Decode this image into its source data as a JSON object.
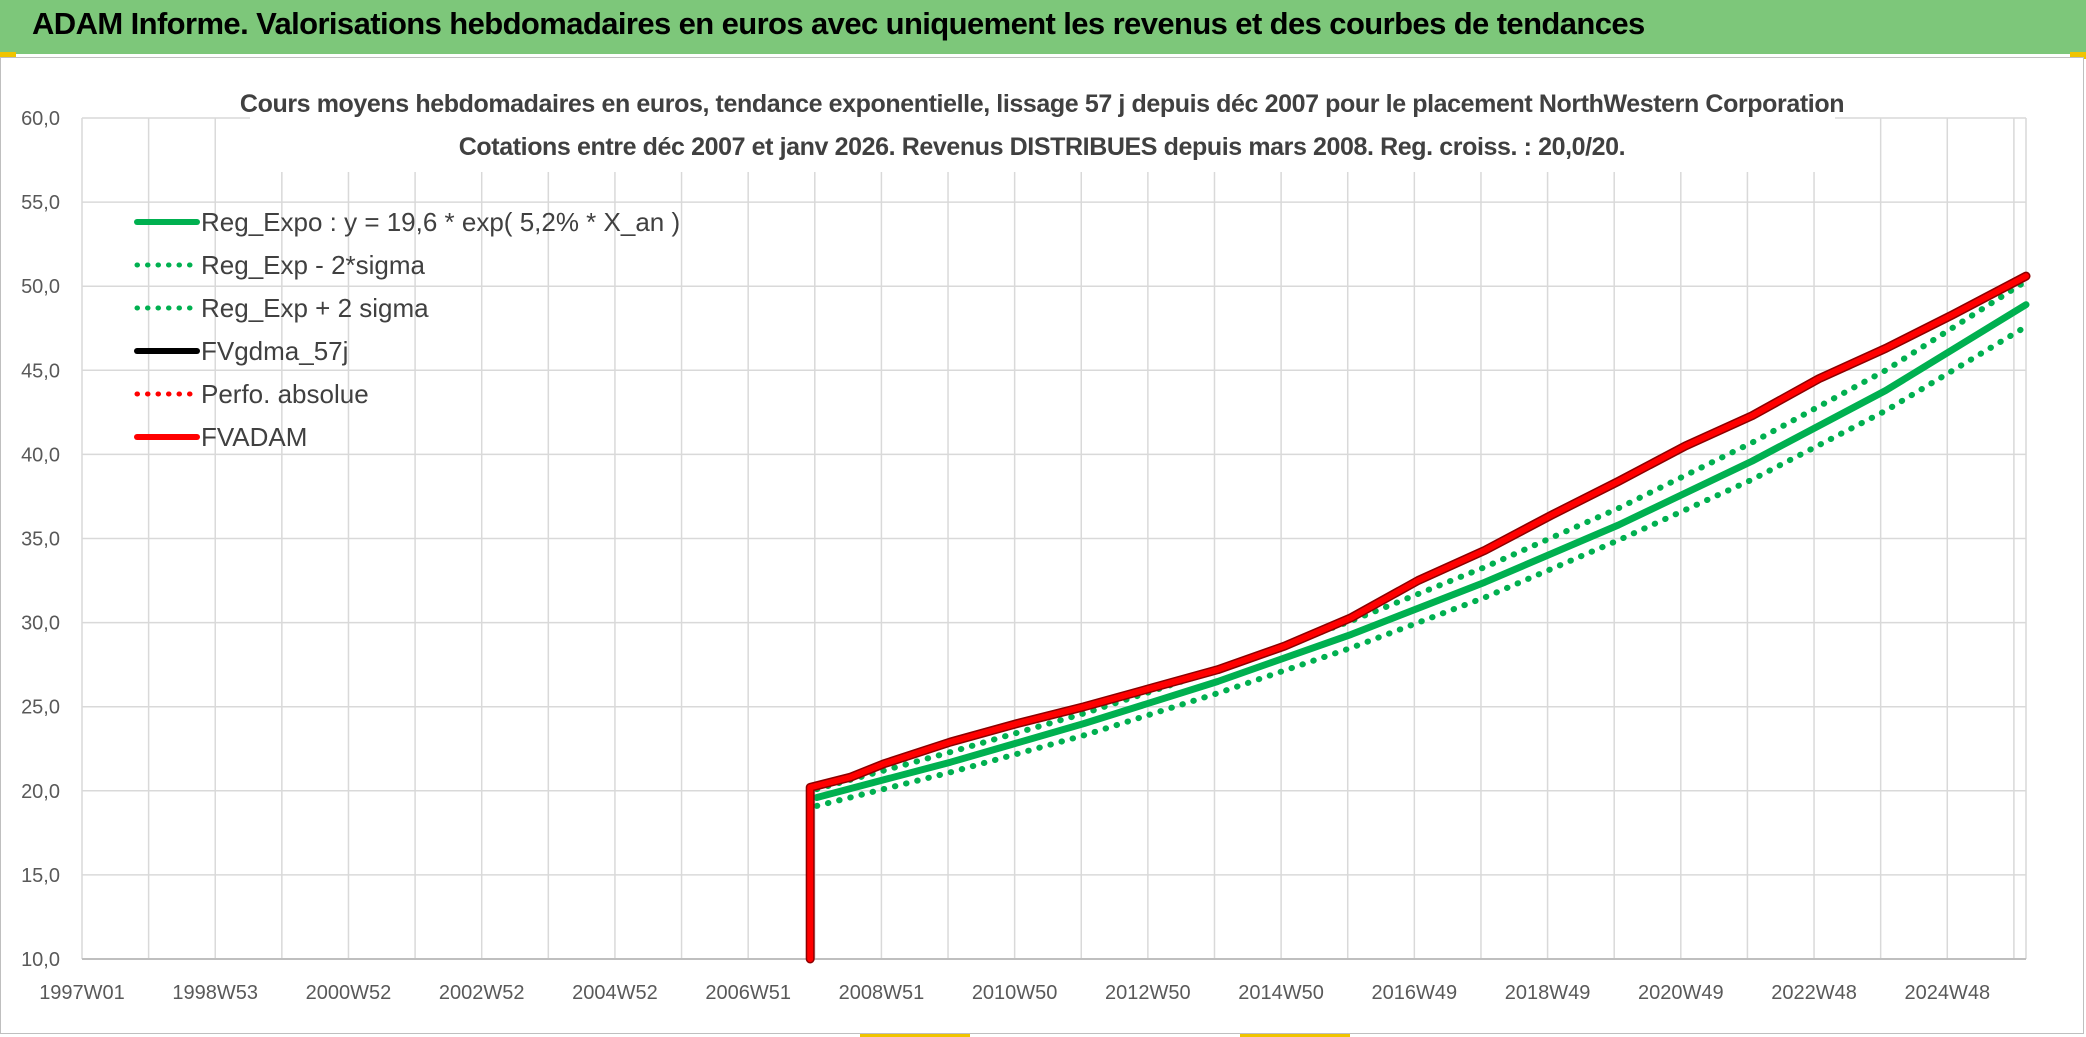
{
  "header": {
    "title": "ADAM Informe. Valorisations hebdomadaires en euros avec uniquement les revenus et des courbes de tendances"
  },
  "colors": {
    "banner": "#7dc77a",
    "green": "#00b050",
    "red": "#ff0000",
    "black": "#000000",
    "grid": "#d9d9d9"
  },
  "chart_data": {
    "type": "line",
    "title_line1": "Cours moyens hebdomadaires en euros, tendance exponentielle, lissage 57 j depuis déc 2007 pour le placement NorthWestern Corporation",
    "title_line2": "Cotations entre déc 2007 et janv 2026. Revenus DISTRIBUES depuis mars 2008. Reg. croiss. : 20,0/20.",
    "x_tick_labels": [
      "1997W01",
      "1998W53",
      "2000W52",
      "2002W52",
      "2004W52",
      "2006W51",
      "2008W51",
      "2010W50",
      "2012W50",
      "2014W50",
      "2016W49",
      "2018W49",
      "2020W49",
      "2022W48",
      "2024W48"
    ],
    "y_tick_labels": [
      "10,0",
      "15,0",
      "20,0",
      "25,0",
      "30,0",
      "35,0",
      "40,0",
      "45,0",
      "50,0",
      "55,0",
      "60,0"
    ],
    "x_range": [
      1997.0,
      2026.1
    ],
    "ylim": [
      10,
      60
    ],
    "grid": true,
    "legend_position": "top-left",
    "legend": [
      {
        "name": "Reg_Expo : y = 19,6 * exp( 5,2% *  X_an )",
        "color": "#00b050",
        "style": "solid"
      },
      {
        "name": "Reg_Exp - 2*sigma",
        "color": "#00b050",
        "style": "dotted"
      },
      {
        "name": "Reg_Exp + 2 sigma",
        "color": "#00b050",
        "style": "dotted"
      },
      {
        "name": "FVgdma_57j",
        "color": "#000000",
        "style": "solid"
      },
      {
        "name": "Perfo. absolue",
        "color": "#ff0000",
        "style": "dotted"
      },
      {
        "name": "FVADAM",
        "color": "#ff0000",
        "style": "solid"
      }
    ],
    "series": [
      {
        "name": "Reg_Expo : y = 19,6 * exp( 5,2% *  X_an )",
        "x": [
          2008.0,
          2010.0,
          2012.0,
          2014.0,
          2016.0,
          2018.0,
          2020.0,
          2022.0,
          2024.0,
          2026.1
        ],
        "y": [
          19.6,
          21.7,
          24.0,
          26.5,
          29.3,
          32.4,
          35.8,
          39.6,
          43.8,
          48.9
        ]
      },
      {
        "name": "Reg_Exp - 2*sigma",
        "x": [
          2008.0,
          2010.0,
          2012.0,
          2014.0,
          2016.0,
          2018.0,
          2020.0,
          2022.0,
          2024.0,
          2026.1
        ],
        "y": [
          19.1,
          21.1,
          23.3,
          25.8,
          28.5,
          31.5,
          34.9,
          38.5,
          42.6,
          47.6
        ]
      },
      {
        "name": "Reg_Exp + 2 sigma",
        "x": [
          2008.0,
          2010.0,
          2012.0,
          2014.0,
          2016.0,
          2018.0,
          2020.0,
          2022.0,
          2024.0,
          2026.1
        ],
        "y": [
          20.1,
          22.3,
          24.6,
          27.2,
          30.1,
          33.3,
          36.8,
          40.7,
          45.0,
          50.3
        ]
      },
      {
        "name": "FVADAM",
        "x": [
          2007.9,
          2007.9,
          2008.5,
          2009.0,
          2010.0,
          2011.0,
          2012.0,
          2013.0,
          2014.0,
          2015.0,
          2016.0,
          2017.0,
          2018.0,
          2019.0,
          2020.0,
          2021.0,
          2022.0,
          2023.0,
          2024.0,
          2025.0,
          2026.1
        ],
        "y": [
          10.0,
          20.2,
          20.8,
          21.6,
          22.9,
          24.0,
          25.0,
          26.1,
          27.2,
          28.6,
          30.3,
          32.5,
          34.3,
          36.4,
          38.4,
          40.5,
          42.3,
          44.5,
          46.3,
          48.3,
          50.6
        ]
      }
    ]
  }
}
